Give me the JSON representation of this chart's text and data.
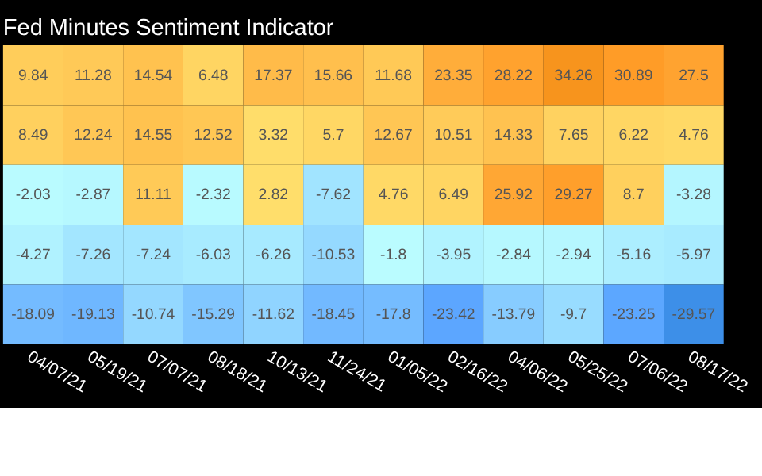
{
  "chart_data": {
    "type": "heatmap",
    "title": "Fed Minutes Sentiment Indicator",
    "categories": [
      "04/07/21",
      "05/19/21",
      "07/07/21",
      "08/18/21",
      "10/13/21",
      "11/24/21",
      "01/05/22",
      "02/16/22",
      "04/06/22",
      "05/25/22",
      "07/06/22",
      "08/17/22"
    ],
    "y_categories": [
      null,
      null,
      null,
      null,
      null
    ],
    "cells": [
      [
        9.84,
        11.28,
        14.54,
        6.48,
        17.37,
        15.66,
        11.68,
        23.35,
        28.22,
        34.26,
        30.89,
        27.5
      ],
      [
        8.49,
        12.24,
        14.55,
        12.52,
        3.32,
        5.7,
        12.67,
        10.51,
        14.33,
        7.65,
        6.22,
        4.76
      ],
      [
        -2.03,
        -2.87,
        11.11,
        -2.32,
        2.82,
        -7.62,
        4.76,
        6.49,
        25.92,
        29.27,
        8.7,
        -3.28
      ],
      [
        -4.27,
        -7.26,
        -7.24,
        -6.03,
        -6.26,
        -10.53,
        -1.8,
        -3.95,
        -2.84,
        -2.94,
        -5.16,
        -5.97
      ],
      [
        -18.09,
        -19.13,
        -10.74,
        -15.29,
        -11.62,
        -18.45,
        -17.8,
        -23.42,
        -13.79,
        -9.7,
        -23.25,
        -29.57
      ]
    ],
    "data_labels": true,
    "tick_labels": "x"
  }
}
